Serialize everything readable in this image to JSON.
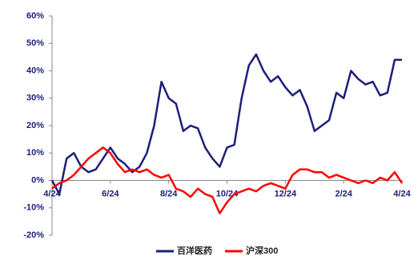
{
  "chart_data": {
    "type": "line",
    "x": [
      0,
      0.25,
      0.5,
      0.75,
      1,
      1.25,
      1.5,
      1.75,
      2,
      2.25,
      2.5,
      2.75,
      3,
      3.25,
      3.5,
      3.75,
      4,
      4.25,
      4.5,
      4.75,
      5,
      5.25,
      5.5,
      5.75,
      6,
      6.25,
      6.5,
      6.75,
      7,
      7.25,
      7.5,
      7.75,
      8,
      8.25,
      8.5,
      8.75,
      9,
      9.25,
      9.5,
      9.75,
      10,
      10.25,
      10.5,
      10.75,
      11,
      11.25,
      11.5,
      11.75,
      12
    ],
    "series": [
      {
        "name": "百洋医药",
        "color": "#1c1f7a",
        "values": [
          0,
          -5,
          8,
          10,
          5,
          3,
          4,
          8,
          12,
          8,
          6,
          3,
          5,
          10,
          20,
          36,
          30,
          28,
          18,
          20,
          19,
          12,
          8,
          5,
          12,
          13,
          30,
          42,
          46,
          40,
          36,
          38,
          34,
          31,
          33,
          27,
          18,
          20,
          22,
          32,
          30,
          40,
          37,
          35,
          36,
          31,
          32,
          44,
          44
        ]
      },
      {
        "name": "沪深300",
        "color": "#ff0000",
        "values": [
          -3,
          -1,
          0,
          2,
          5,
          8,
          10,
          12,
          10,
          6,
          3,
          4,
          3,
          4,
          2,
          1,
          2,
          -3,
          -4,
          -6,
          -3,
          -5,
          -6,
          -12,
          -8,
          -5,
          -4,
          -3,
          -4,
          -2,
          -1,
          -2,
          -3,
          2,
          4,
          4,
          3,
          3,
          1,
          2,
          1,
          0,
          -1,
          0,
          -1,
          1,
          0,
          3,
          -1
        ]
      }
    ],
    "xlim": [
      0,
      12
    ],
    "xticks": [
      {
        "value": 0,
        "label": "4/24"
      },
      {
        "value": 2,
        "label": "6/24"
      },
      {
        "value": 4,
        "label": "8/24"
      },
      {
        "value": 6,
        "label": "10/24"
      },
      {
        "value": 8,
        "label": "12/24"
      },
      {
        "value": 10,
        "label": "2/24"
      },
      {
        "value": 12,
        "label": "4/24"
      }
    ],
    "ylim": [
      -20,
      60
    ],
    "yticks": [
      {
        "value": -20,
        "label": "-20%"
      },
      {
        "value": -10,
        "label": "-10%"
      },
      {
        "value": 0,
        "label": "0%"
      },
      {
        "value": 10,
        "label": "10%"
      },
      {
        "value": 20,
        "label": "20%"
      },
      {
        "value": 30,
        "label": "30%"
      },
      {
        "value": 40,
        "label": "40%"
      },
      {
        "value": 50,
        "label": "50%"
      },
      {
        "value": 60,
        "label": "60%"
      }
    ],
    "grid": false,
    "legend": "bottom"
  }
}
